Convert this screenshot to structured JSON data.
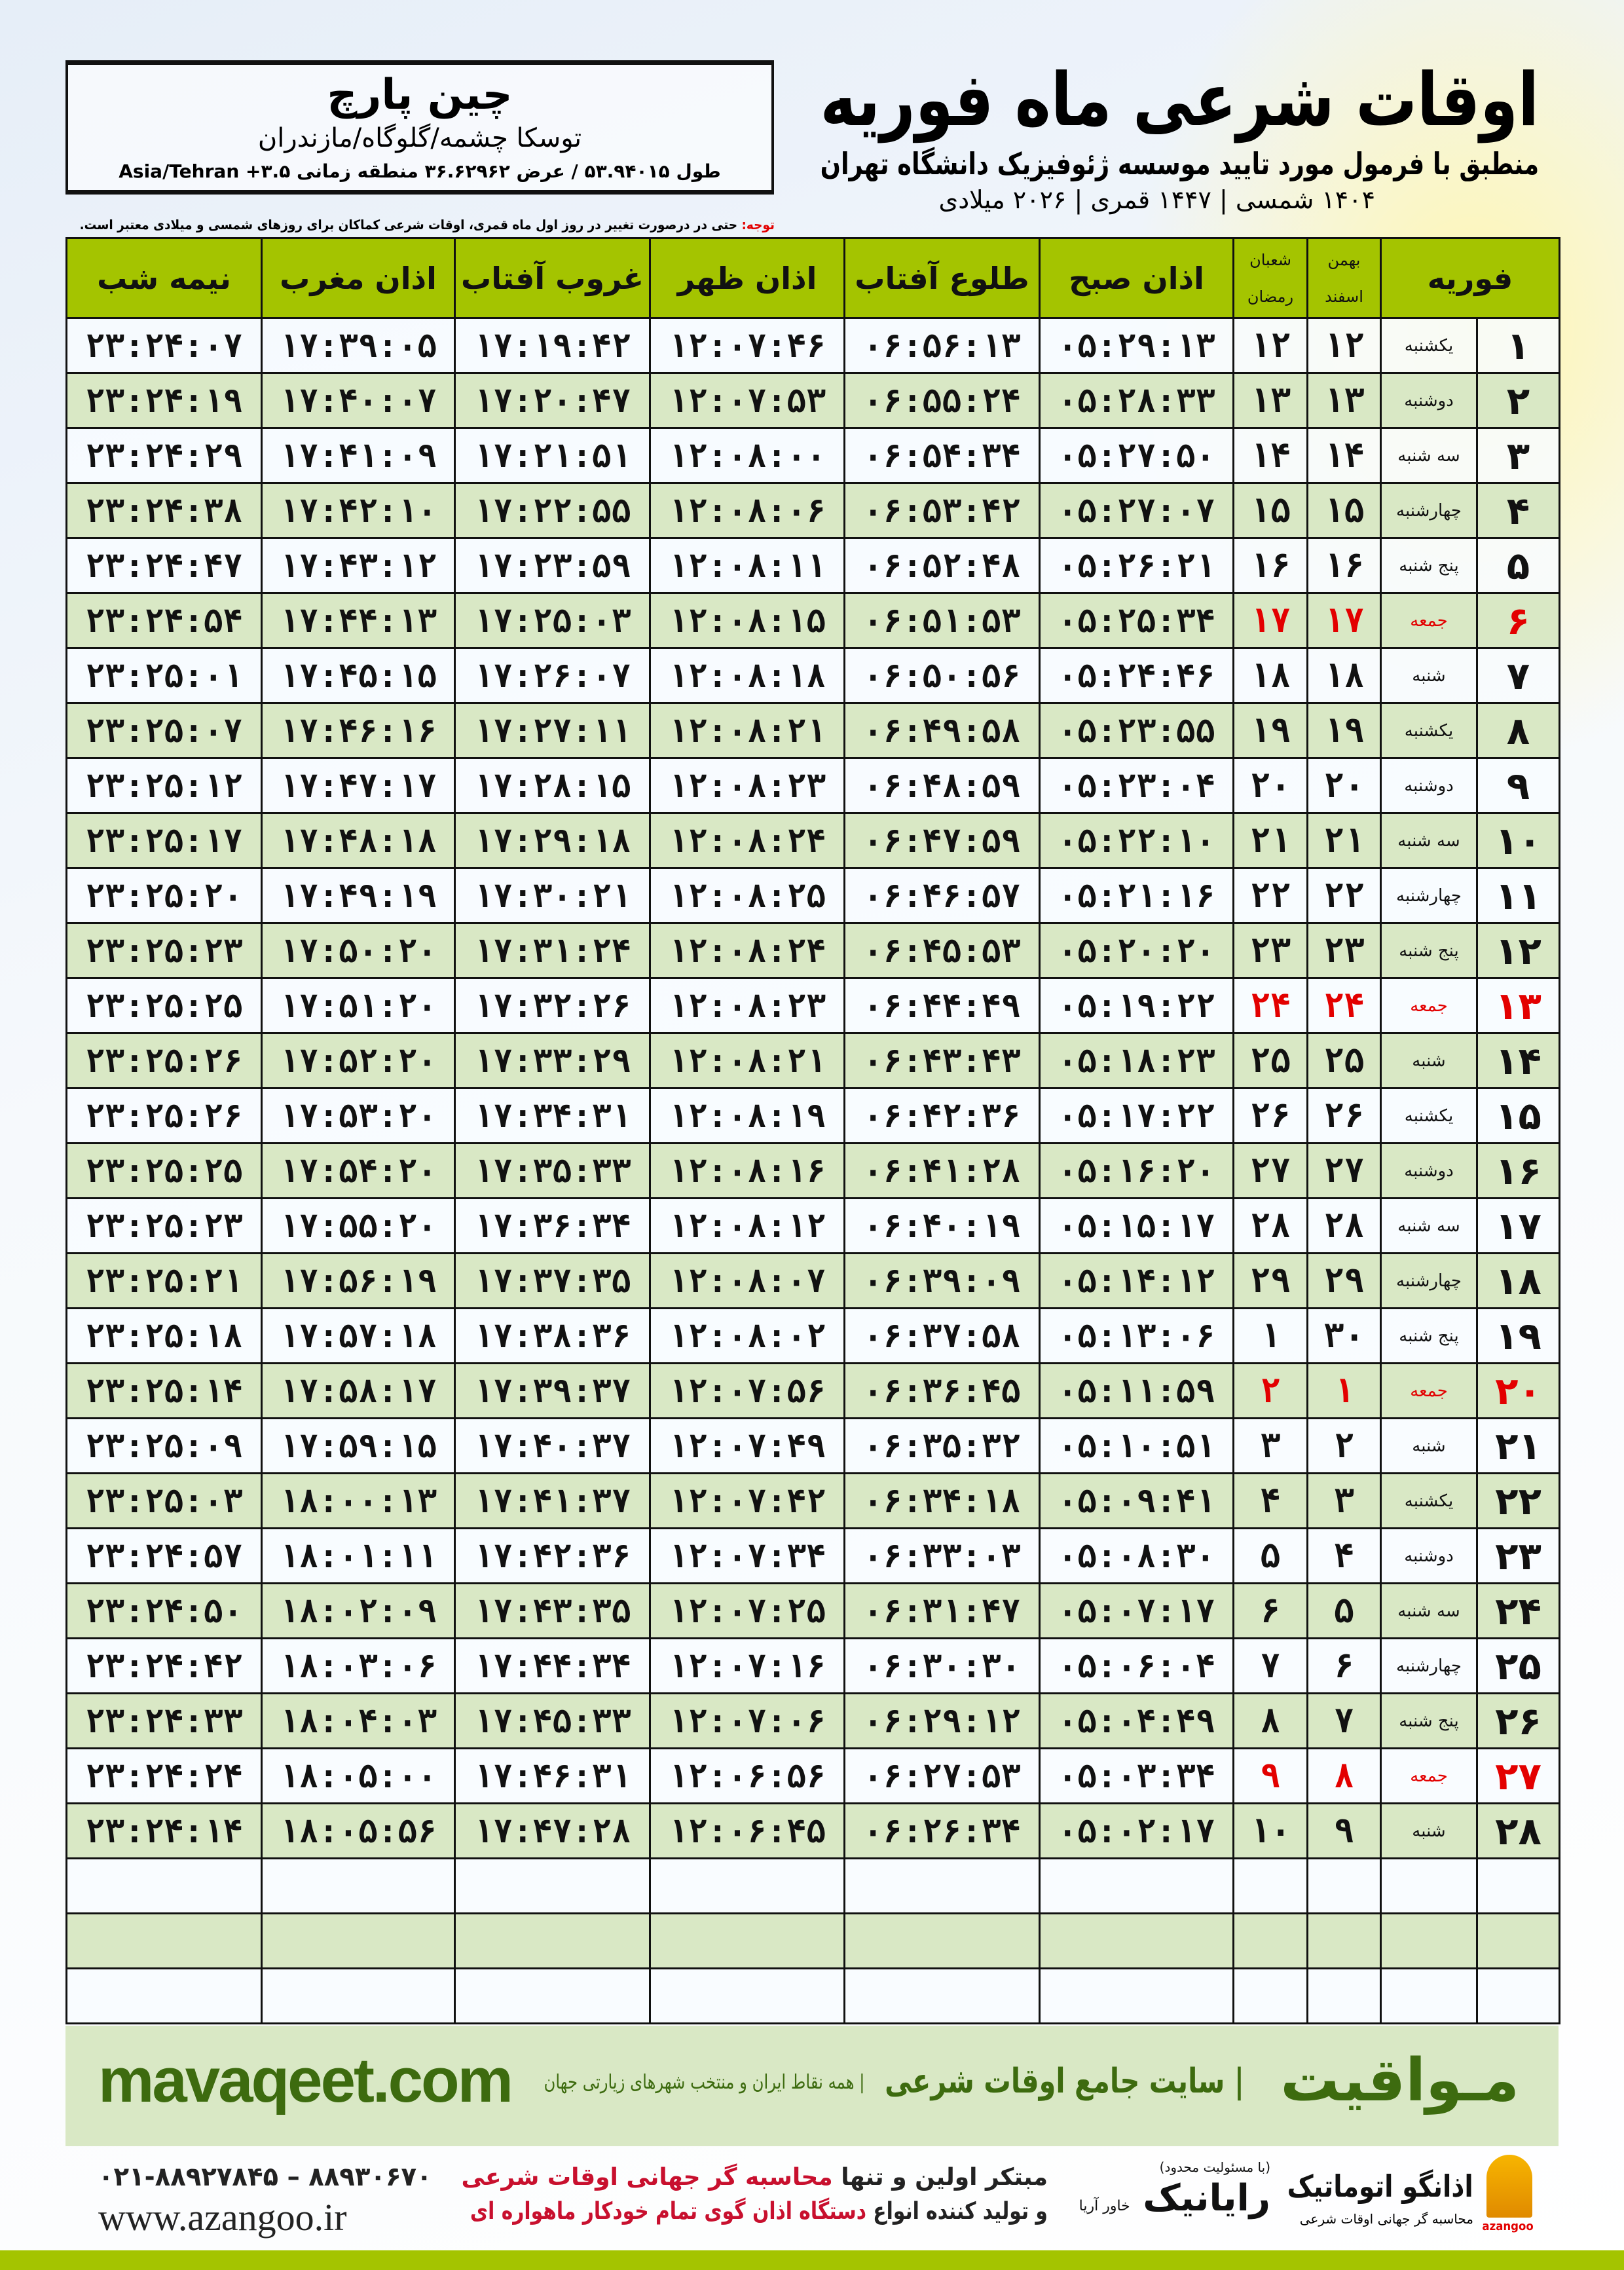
{
  "header": {
    "title": "اوقات شرعی ماه فوریه",
    "subtitle": "منطبق با فرمول مورد تایید موسسه ژئوفیزیک دانشگاه تهران",
    "dateline": "۱۴۰۴ شمسی | ۱۴۴۷ قمری | ۲۰۲۶ میلادی"
  },
  "location": {
    "city": "چین پارچ",
    "region": "توسکا چشمه/گلوگاه/مازندران",
    "coords": "طول ۵۳.۹۴۰۱۵ / عرض ۳۶.۶۲۹۶۲ منطقه زمانی ۳.۵+ Asia/Tehran"
  },
  "note": {
    "label": "توجه:",
    "text": " حتی در درصورت تغییر در روز اول ماه قمری، اوقات شرعی کماکان برای روزهای شمسی و میلادی معتبر است."
  },
  "columns": {
    "month": "فوریه",
    "shamsi_top": "بهمن",
    "shamsi_bottom": "اسفند",
    "qamari_top": "شعبان",
    "qamari_bottom": "رمضان",
    "sobh": "اذان صبح",
    "tolu": "طلوع آفتاب",
    "zohr": "اذان ظهر",
    "ghorub": "غروب آفتاب",
    "maghrib": "اذان مغرب",
    "nimeshab": "نیمه شب"
  },
  "colors": {
    "header": "#a4c400",
    "row_alt": "#d9e8c5",
    "friday": "#e30000",
    "brand": "#3d6b0f"
  },
  "rows": [
    [
      "۱",
      "یکشنبه",
      "۱۲",
      "۱۲",
      "۰۵:۲۹:۱۳",
      "۰۶:۵۶:۱۳",
      "۱۲:۰۷:۴۶",
      "۱۷:۱۹:۴۲",
      "۱۷:۳۹:۰۵",
      "۲۳:۲۴:۰۷"
    ],
    [
      "۲",
      "دوشنبه",
      "۱۳",
      "۱۳",
      "۰۵:۲۸:۳۳",
      "۰۶:۵۵:۲۴",
      "۱۲:۰۷:۵۳",
      "۱۷:۲۰:۴۷",
      "۱۷:۴۰:۰۷",
      "۲۳:۲۴:۱۹"
    ],
    [
      "۳",
      "سه شنبه",
      "۱۴",
      "۱۴",
      "۰۵:۲۷:۵۰",
      "۰۶:۵۴:۳۴",
      "۱۲:۰۸:۰۰",
      "۱۷:۲۱:۵۱",
      "۱۷:۴۱:۰۹",
      "۲۳:۲۴:۲۹"
    ],
    [
      "۴",
      "چهارشنبه",
      "۱۵",
      "۱۵",
      "۰۵:۲۷:۰۷",
      "۰۶:۵۳:۴۲",
      "۱۲:۰۸:۰۶",
      "۱۷:۲۲:۵۵",
      "۱۷:۴۲:۱۰",
      "۲۳:۲۴:۳۸"
    ],
    [
      "۵",
      "پنج شنبه",
      "۱۶",
      "۱۶",
      "۰۵:۲۶:۲۱",
      "۰۶:۵۲:۴۸",
      "۱۲:۰۸:۱۱",
      "۱۷:۲۳:۵۹",
      "۱۷:۴۳:۱۲",
      "۲۳:۲۴:۴۷"
    ],
    [
      "۶",
      "جمعه",
      "۱۷",
      "۱۷",
      "۰۵:۲۵:۳۴",
      "۰۶:۵۱:۵۳",
      "۱۲:۰۸:۱۵",
      "۱۷:۲۵:۰۳",
      "۱۷:۴۴:۱۳",
      "۲۳:۲۴:۵۴"
    ],
    [
      "۷",
      "شنبه",
      "۱۸",
      "۱۸",
      "۰۵:۲۴:۴۶",
      "۰۶:۵۰:۵۶",
      "۱۲:۰۸:۱۸",
      "۱۷:۲۶:۰۷",
      "۱۷:۴۵:۱۵",
      "۲۳:۲۵:۰۱"
    ],
    [
      "۸",
      "یکشنبه",
      "۱۹",
      "۱۹",
      "۰۵:۲۳:۵۵",
      "۰۶:۴۹:۵۸",
      "۱۲:۰۸:۲۱",
      "۱۷:۲۷:۱۱",
      "۱۷:۴۶:۱۶",
      "۲۳:۲۵:۰۷"
    ],
    [
      "۹",
      "دوشنبه",
      "۲۰",
      "۲۰",
      "۰۵:۲۳:۰۴",
      "۰۶:۴۸:۵۹",
      "۱۲:۰۸:۲۳",
      "۱۷:۲۸:۱۵",
      "۱۷:۴۷:۱۷",
      "۲۳:۲۵:۱۲"
    ],
    [
      "۱۰",
      "سه شنبه",
      "۲۱",
      "۲۱",
      "۰۵:۲۲:۱۰",
      "۰۶:۴۷:۵۹",
      "۱۲:۰۸:۲۴",
      "۱۷:۲۹:۱۸",
      "۱۷:۴۸:۱۸",
      "۲۳:۲۵:۱۷"
    ],
    [
      "۱۱",
      "چهارشنبه",
      "۲۲",
      "۲۲",
      "۰۵:۲۱:۱۶",
      "۰۶:۴۶:۵۷",
      "۱۲:۰۸:۲۵",
      "۱۷:۳۰:۲۱",
      "۱۷:۴۹:۱۹",
      "۲۳:۲۵:۲۰"
    ],
    [
      "۱۲",
      "پنج شنبه",
      "۲۳",
      "۲۳",
      "۰۵:۲۰:۲۰",
      "۰۶:۴۵:۵۳",
      "۱۲:۰۸:۲۴",
      "۱۷:۳۱:۲۴",
      "۱۷:۵۰:۲۰",
      "۲۳:۲۵:۲۳"
    ],
    [
      "۱۳",
      "جمعه",
      "۲۴",
      "۲۴",
      "۰۵:۱۹:۲۲",
      "۰۶:۴۴:۴۹",
      "۱۲:۰۸:۲۳",
      "۱۷:۳۲:۲۶",
      "۱۷:۵۱:۲۰",
      "۲۳:۲۵:۲۵"
    ],
    [
      "۱۴",
      "شنبه",
      "۲۵",
      "۲۵",
      "۰۵:۱۸:۲۳",
      "۰۶:۴۳:۴۳",
      "۱۲:۰۸:۲۱",
      "۱۷:۳۳:۲۹",
      "۱۷:۵۲:۲۰",
      "۲۳:۲۵:۲۶"
    ],
    [
      "۱۵",
      "یکشنبه",
      "۲۶",
      "۲۶",
      "۰۵:۱۷:۲۲",
      "۰۶:۴۲:۳۶",
      "۱۲:۰۸:۱۹",
      "۱۷:۳۴:۳۱",
      "۱۷:۵۳:۲۰",
      "۲۳:۲۵:۲۶"
    ],
    [
      "۱۶",
      "دوشنبه",
      "۲۷",
      "۲۷",
      "۰۵:۱۶:۲۰",
      "۰۶:۴۱:۲۸",
      "۱۲:۰۸:۱۶",
      "۱۷:۳۵:۳۳",
      "۱۷:۵۴:۲۰",
      "۲۳:۲۵:۲۵"
    ],
    [
      "۱۷",
      "سه شنبه",
      "۲۸",
      "۲۸",
      "۰۵:۱۵:۱۷",
      "۰۶:۴۰:۱۹",
      "۱۲:۰۸:۱۲",
      "۱۷:۳۶:۳۴",
      "۱۷:۵۵:۲۰",
      "۲۳:۲۵:۲۳"
    ],
    [
      "۱۸",
      "چهارشنبه",
      "۲۹",
      "۲۹",
      "۰۵:۱۴:۱۲",
      "۰۶:۳۹:۰۹",
      "۱۲:۰۸:۰۷",
      "۱۷:۳۷:۳۵",
      "۱۷:۵۶:۱۹",
      "۲۳:۲۵:۲۱"
    ],
    [
      "۱۹",
      "پنج شنبه",
      "۳۰",
      "۱",
      "۰۵:۱۳:۰۶",
      "۰۶:۳۷:۵۸",
      "۱۲:۰۸:۰۲",
      "۱۷:۳۸:۳۶",
      "۱۷:۵۷:۱۸",
      "۲۳:۲۵:۱۸"
    ],
    [
      "۲۰",
      "جمعه",
      "۱",
      "۲",
      "۰۵:۱۱:۵۹",
      "۰۶:۳۶:۴۵",
      "۱۲:۰۷:۵۶",
      "۱۷:۳۹:۳۷",
      "۱۷:۵۸:۱۷",
      "۲۳:۲۵:۱۴"
    ],
    [
      "۲۱",
      "شنبه",
      "۲",
      "۳",
      "۰۵:۱۰:۵۱",
      "۰۶:۳۵:۳۲",
      "۱۲:۰۷:۴۹",
      "۱۷:۴۰:۳۷",
      "۱۷:۵۹:۱۵",
      "۲۳:۲۵:۰۹"
    ],
    [
      "۲۲",
      "یکشنبه",
      "۳",
      "۴",
      "۰۵:۰۹:۴۱",
      "۰۶:۳۴:۱۸",
      "۱۲:۰۷:۴۲",
      "۱۷:۴۱:۳۷",
      "۱۸:۰۰:۱۳",
      "۲۳:۲۵:۰۳"
    ],
    [
      "۲۳",
      "دوشنبه",
      "۴",
      "۵",
      "۰۵:۰۸:۳۰",
      "۰۶:۳۳:۰۳",
      "۱۲:۰۷:۳۴",
      "۱۷:۴۲:۳۶",
      "۱۸:۰۱:۱۱",
      "۲۳:۲۴:۵۷"
    ],
    [
      "۲۴",
      "سه شنبه",
      "۵",
      "۶",
      "۰۵:۰۷:۱۷",
      "۰۶:۳۱:۴۷",
      "۱۲:۰۷:۲۵",
      "۱۷:۴۳:۳۵",
      "۱۸:۰۲:۰۹",
      "۲۳:۲۴:۵۰"
    ],
    [
      "۲۵",
      "چهارشنبه",
      "۶",
      "۷",
      "۰۵:۰۶:۰۴",
      "۰۶:۳۰:۳۰",
      "۱۲:۰۷:۱۶",
      "۱۷:۴۴:۳۴",
      "۱۸:۰۳:۰۶",
      "۲۳:۲۴:۴۲"
    ],
    [
      "۲۶",
      "پنج شنبه",
      "۷",
      "۸",
      "۰۵:۰۴:۴۹",
      "۰۶:۲۹:۱۲",
      "۱۲:۰۷:۰۶",
      "۱۷:۴۵:۳۳",
      "۱۸:۰۴:۰۳",
      "۲۳:۲۴:۳۳"
    ],
    [
      "۲۷",
      "جمعه",
      "۸",
      "۹",
      "۰۵:۰۳:۳۴",
      "۰۶:۲۷:۵۳",
      "۱۲:۰۶:۵۶",
      "۱۷:۴۶:۳۱",
      "۱۸:۰۵:۰۰",
      "۲۳:۲۴:۲۴"
    ],
    [
      "۲۸",
      "شنبه",
      "۹",
      "۱۰",
      "۰۵:۰۲:۱۷",
      "۰۶:۲۶:۳۴",
      "۱۲:۰۶:۴۵",
      "۱۷:۴۷:۲۸",
      "۱۸:۰۵:۵۶",
      "۲۳:۲۴:۱۴"
    ]
  ],
  "friday_label": "جمعه",
  "footer": {
    "brand": "مـواقیت",
    "brand_sub": "| سایت جامع اوقات شرعی",
    "brand_tag": "| همه نقاط ایران و منتخب شهرهای زیارتی جهان",
    "site": "mavaqeet.com",
    "ad_line1_a": "مبتکر اولین و تنها ",
    "ad_line1_b": "محاسبه گر جهانی اوقات شرعی",
    "ad_line2_a": "و تولید کننده انواع ",
    "ad_line2_b": "دستگاه اذان گوی تمام خودکار ماهواره ای",
    "phones": "۰۲۱-۸۸۹۲۷۸۴۵ – ۸۸۹۳۰۶۷۰",
    "web": "www.azangoo.ir",
    "raianik_small": "(با مسئولیت محدود)",
    "raianik": "رایانیک",
    "raianik_side": "خاور آریا",
    "azangoo_name": "اذانگو اتوماتیک",
    "azangoo_sub": "محاسبه گر جهانی اوقات شرعی",
    "azangoo_en": "azangoo"
  }
}
